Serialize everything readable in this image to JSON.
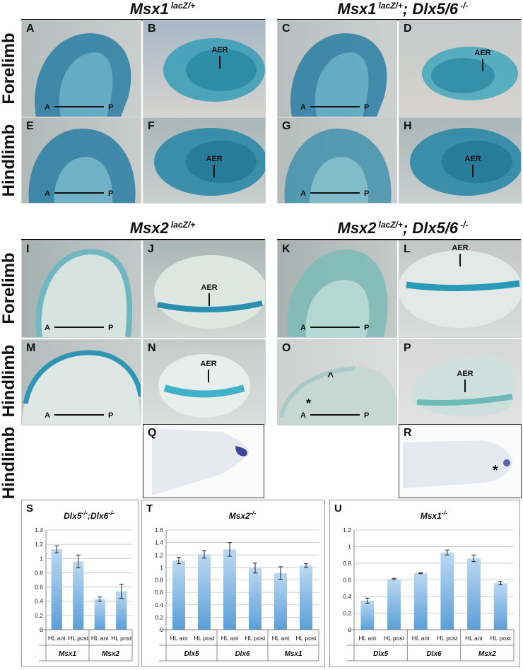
{
  "titles": {
    "top_left": {
      "gene": "Msx1",
      "sup": "lacZ/+",
      "rest": ""
    },
    "top_right": {
      "gene": "Msx1",
      "sup": "lacZ/+",
      "rest": "; Dlx5/6",
      "rest_sup": "-/-"
    },
    "mid_left": {
      "gene": "Msx2",
      "sup": "lacZ/+",
      "rest": ""
    },
    "mid_right": {
      "gene": "Msx2",
      "sup": "lacZ/+",
      "rest": "; Dlx5/6",
      "rest_sup": "-/-"
    }
  },
  "row_labels": {
    "forelimb_1": "Forelimb",
    "hindlimb_1": "Hindlimb",
    "forelimb_2": "Forelimb",
    "hindlimb_2": "Hindlimb",
    "hindlimb_3": "Hindlimb"
  },
  "panel_letters": [
    "A",
    "B",
    "C",
    "D",
    "E",
    "F",
    "G",
    "H",
    "I",
    "J",
    "K",
    "L",
    "M",
    "N",
    "O",
    "P",
    "Q",
    "R"
  ],
  "labels": {
    "aer": "AER",
    "anterior": "A",
    "posterior": "P",
    "asterisk": "*",
    "caret": "^"
  },
  "colors": {
    "xgal_dark": "#1f6f8b",
    "xgal_mid": "#2f8fb0",
    "tissue": "#cfd8d6",
    "bg_gray": "#b9c0c0",
    "bar": "#7fb3e0",
    "insitu": "#1e2a8a"
  },
  "charts": {
    "S": {
      "letter": "S",
      "title": "Dlx5",
      "title_sup": "-/-",
      "title2": ";Dlx6",
      "title2_sup": "-/-"
    },
    "T": {
      "letter": "T",
      "title": "Msx2",
      "title_sup": "-/-"
    },
    "U": {
      "letter": "U",
      "title": "Msx1",
      "title_sup": "-/-"
    }
  },
  "chart_data": [
    {
      "type": "bar",
      "title": "Dlx5-/-;Dlx6-/-",
      "categories": [
        "HL ant",
        "HL post",
        "HL ant",
        "HL post"
      ],
      "groups": [
        "Msx1",
        "Msx2"
      ],
      "values": [
        1.13,
        0.96,
        0.43,
        0.54
      ],
      "errors": [
        0.05,
        0.09,
        0.03,
        0.1
      ],
      "ylim": [
        0,
        1.4
      ],
      "yticks": [
        "0",
        "0.2",
        "0.4",
        "0.6",
        "0.8",
        "1",
        "1.2",
        "1.4"
      ],
      "grid": true
    },
    {
      "type": "bar",
      "title": "Msx2-/-",
      "categories": [
        "HL ant",
        "HL post",
        "HL ant",
        "HL post",
        "HL ant",
        "HL post"
      ],
      "groups": [
        "Dlx5",
        "Dlx6",
        "Msx1"
      ],
      "values": [
        1.11,
        1.21,
        1.29,
        0.99,
        0.91,
        1.03
      ],
      "errors": [
        0.05,
        0.06,
        0.11,
        0.08,
        0.1,
        0.03
      ],
      "ylim": [
        0,
        1.6
      ],
      "yticks": [
        "0",
        "0.2",
        "0.4",
        "0.6",
        "0.8",
        "1",
        "1.2",
        "1.4",
        "1.6"
      ],
      "grid": true
    },
    {
      "type": "bar",
      "title": "Msx1-/-",
      "categories": [
        "HL ant",
        "HL post",
        "HL ant",
        "HL post",
        "HL ant",
        "HL post"
      ],
      "groups": [
        "Dlx5",
        "Dlx6",
        "Msx2"
      ],
      "values": [
        0.35,
        0.61,
        0.68,
        0.93,
        0.86,
        0.56
      ],
      "errors": [
        0.03,
        0.01,
        0.005,
        0.03,
        0.04,
        0.02
      ],
      "ylim": [
        0,
        1.2
      ],
      "yticks": [
        "0",
        "0.2",
        "0.4",
        "0.6",
        "0.8",
        "1",
        "1.2"
      ],
      "grid": true
    }
  ]
}
